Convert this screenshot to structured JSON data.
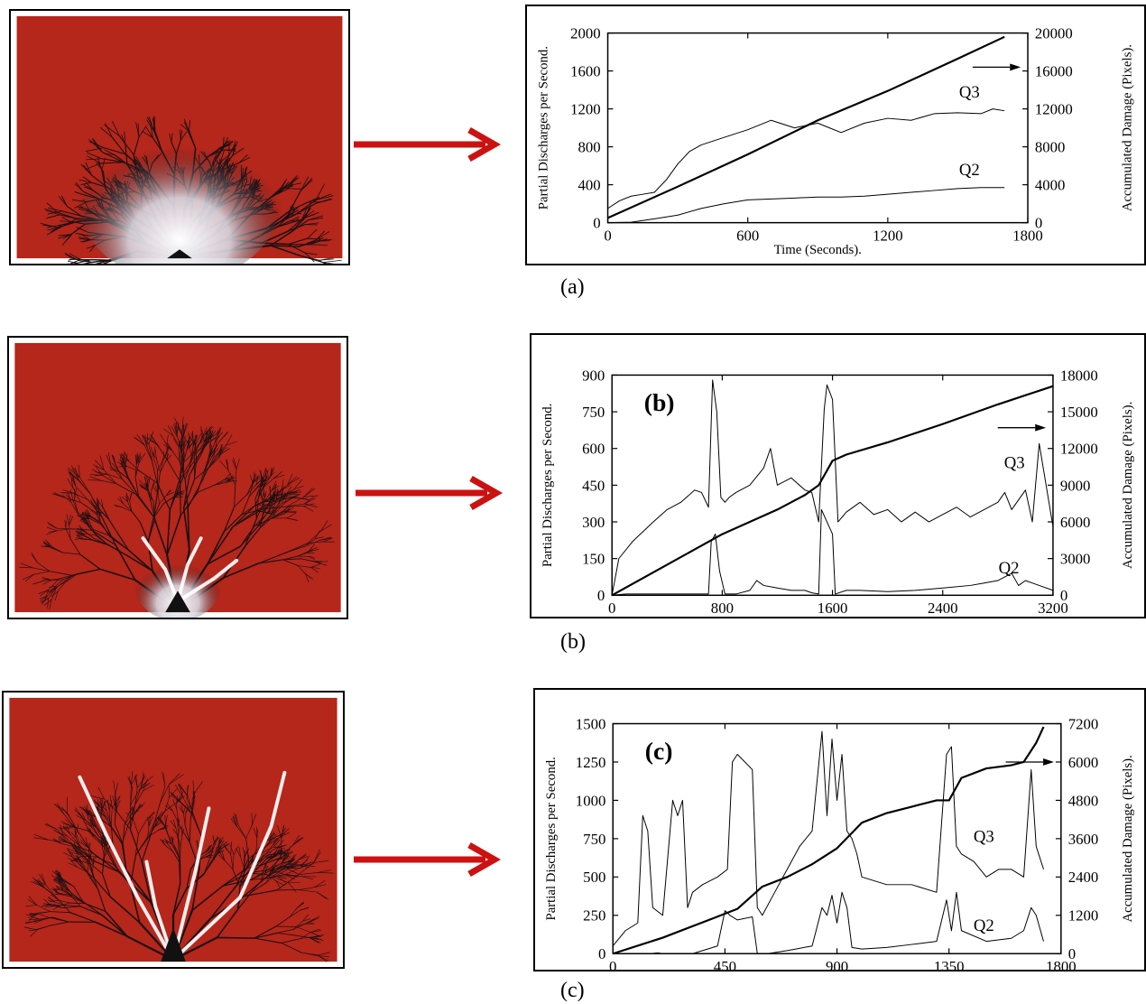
{
  "colors": {
    "photo_bg": "#b5261b",
    "tree": "#1a1014",
    "arrow": "#cc1111",
    "glow": "#ffffff"
  },
  "figure": {
    "captions": [
      "(a)",
      "(b)",
      "(c)"
    ]
  },
  "chart_data": [
    {
      "type": "line",
      "panel_label": "",
      "xlabel": "Time (Seconds).",
      "ylabel": "Partial Discharges per Second.",
      "y2label": "Accumulated Damage (Pixels).",
      "xlim": [
        0,
        1800
      ],
      "ylim": [
        0,
        2000
      ],
      "y2lim": [
        0,
        20000
      ],
      "xticks": [
        0,
        600,
        1200,
        1800
      ],
      "yticks": [
        0,
        400,
        800,
        1200,
        1600,
        2000
      ],
      "y2ticks": [
        0,
        4000,
        8000,
        12000,
        16000,
        20000
      ],
      "arrow_label_y2": 16400,
      "series": [
        {
          "name": "Q3",
          "axis": "left",
          "label_at": [
            1550,
            1320
          ],
          "x": [
            0,
            50,
            100,
            150,
            200,
            250,
            300,
            350,
            400,
            500,
            600,
            700,
            800,
            900,
            950,
            1000,
            1100,
            1200,
            1300,
            1400,
            1500,
            1600,
            1650,
            1700
          ],
          "y": [
            150,
            230,
            280,
            300,
            320,
            450,
            620,
            750,
            820,
            900,
            980,
            1080,
            1000,
            1050,
            1000,
            950,
            1050,
            1100,
            1080,
            1150,
            1160,
            1150,
            1200,
            1180
          ]
        },
        {
          "name": "Q2",
          "axis": "left",
          "label_at": [
            1550,
            500
          ],
          "x": [
            0,
            100,
            200,
            300,
            400,
            500,
            600,
            700,
            800,
            900,
            1000,
            1100,
            1200,
            1300,
            1400,
            1500,
            1600,
            1700
          ],
          "y": [
            0,
            5,
            40,
            80,
            150,
            200,
            240,
            250,
            260,
            270,
            270,
            280,
            300,
            320,
            340,
            360,
            370,
            370
          ]
        },
        {
          "name": "Accumulated damage",
          "axis": "right",
          "x": [
            0,
            300,
            600,
            900,
            1200,
            1500,
            1700
          ],
          "y": [
            500,
            3800,
            7200,
            10800,
            13900,
            17300,
            19600
          ]
        }
      ]
    },
    {
      "type": "line",
      "panel_label": "(b)",
      "xlabel": "Time (Seconds).",
      "ylabel": "Partial Discharges per Second.",
      "y2label": "Accumulated Damage (Pixels).",
      "xlim": [
        0,
        3200
      ],
      "ylim": [
        0,
        900
      ],
      "y2lim": [
        0,
        18000
      ],
      "xticks": [
        0,
        800,
        1600,
        2400,
        3200
      ],
      "yticks": [
        0,
        150,
        300,
        450,
        600,
        750,
        900
      ],
      "y2ticks": [
        0,
        3000,
        6000,
        9000,
        12000,
        15000,
        18000
      ],
      "arrow_label_y2": 13700,
      "series": [
        {
          "name": "Q3",
          "axis": "left",
          "label_at": [
            2920,
            520
          ],
          "x": [
            0,
            50,
            150,
            300,
            400,
            500,
            600,
            650,
            700,
            730,
            760,
            790,
            820,
            850,
            900,
            1000,
            1100,
            1150,
            1200,
            1300,
            1400,
            1450,
            1500,
            1540,
            1560,
            1600,
            1640,
            1700,
            1800,
            1900,
            2000,
            2100,
            2200,
            2300,
            2400,
            2500,
            2600,
            2700,
            2800,
            2850,
            2900,
            3000,
            3050,
            3100,
            3200
          ],
          "y": [
            0,
            150,
            220,
            300,
            350,
            380,
            430,
            420,
            360,
            880,
            750,
            400,
            380,
            400,
            420,
            450,
            520,
            600,
            450,
            480,
            430,
            420,
            300,
            760,
            860,
            800,
            300,
            340,
            380,
            330,
            350,
            300,
            340,
            300,
            330,
            360,
            320,
            350,
            380,
            420,
            350,
            430,
            300,
            620,
            280
          ]
        },
        {
          "name": "Q2",
          "axis": "left",
          "label_at": [
            2880,
            90
          ],
          "x": [
            0,
            100,
            200,
            300,
            400,
            500,
            600,
            700,
            720,
            750,
            780,
            820,
            900,
            1000,
            1050,
            1100,
            1200,
            1300,
            1400,
            1450,
            1500,
            1520,
            1560,
            1600,
            1620,
            1700,
            1800,
            2000,
            2200,
            2400,
            2600,
            2700,
            2800,
            2900,
            2950,
            3000,
            3100,
            3200
          ],
          "y": [
            0,
            5,
            5,
            5,
            5,
            5,
            5,
            5,
            220,
            250,
            100,
            5,
            5,
            20,
            60,
            40,
            30,
            20,
            20,
            10,
            5,
            350,
            300,
            250,
            5,
            20,
            20,
            15,
            20,
            30,
            40,
            50,
            60,
            90,
            40,
            60,
            40,
            20
          ]
        },
        {
          "name": "Accumulated damage",
          "axis": "right",
          "x": [
            0,
            400,
            800,
            1200,
            1400,
            1500,
            1550,
            1600,
            1700,
            2000,
            2400,
            2800,
            3200
          ],
          "y": [
            0,
            2500,
            5000,
            7000,
            8200,
            9000,
            10000,
            11000,
            11500,
            12500,
            14000,
            15600,
            17100
          ]
        }
      ]
    },
    {
      "type": "line",
      "panel_label": "(c)",
      "xlabel": "Time (Seconds).",
      "ylabel": "Partial Discharges per Second.",
      "y2label": "Accumulated Damage (Pixels).",
      "xlim": [
        0,
        1800
      ],
      "ylim": [
        0,
        1500
      ],
      "y2lim": [
        0,
        7200
      ],
      "xticks": [
        0,
        450,
        900,
        1350,
        1800
      ],
      "yticks": [
        0,
        250,
        500,
        750,
        1000,
        1250,
        1500
      ],
      "y2ticks": [
        0,
        1200,
        2400,
        3600,
        4800,
        6000,
        7200
      ],
      "arrow_label_y2": 6000,
      "series": [
        {
          "name": "Q3",
          "axis": "left",
          "label_at": [
            1490,
            730
          ],
          "x": [
            0,
            50,
            100,
            120,
            140,
            160,
            200,
            240,
            260,
            280,
            300,
            320,
            360,
            420,
            460,
            480,
            500,
            560,
            580,
            600,
            650,
            700,
            750,
            800,
            840,
            860,
            880,
            900,
            920,
            940,
            960,
            980,
            1000,
            1100,
            1200,
            1300,
            1340,
            1360,
            1380,
            1400,
            1450,
            1500,
            1550,
            1600,
            1650,
            1680,
            1700,
            1730
          ],
          "y": [
            50,
            150,
            200,
            900,
            800,
            300,
            250,
            1000,
            900,
            1000,
            300,
            400,
            450,
            500,
            550,
            1250,
            1300,
            1200,
            300,
            250,
            400,
            550,
            700,
            800,
            1450,
            900,
            1400,
            1000,
            1300,
            800,
            750,
            650,
            500,
            450,
            450,
            400,
            1300,
            1350,
            700,
            650,
            600,
            500,
            550,
            550,
            500,
            1200,
            700,
            550
          ]
        },
        {
          "name": "Q2",
          "axis": "left",
          "label_at": [
            1490,
            150
          ],
          "x": [
            0,
            50,
            100,
            150,
            180,
            200,
            250,
            300,
            320,
            420,
            450,
            470,
            500,
            560,
            580,
            620,
            700,
            800,
            840,
            860,
            880,
            900,
            920,
            940,
            960,
            1000,
            1100,
            1200,
            1300,
            1340,
            1360,
            1380,
            1400,
            1500,
            1600,
            1650,
            1680,
            1700,
            1730
          ],
          "y": [
            0,
            0,
            0,
            0,
            5,
            0,
            0,
            0,
            0,
            50,
            280,
            250,
            220,
            240,
            0,
            0,
            20,
            50,
            300,
            250,
            380,
            200,
            400,
            300,
            40,
            30,
            40,
            60,
            80,
            350,
            150,
            400,
            150,
            80,
            100,
            150,
            300,
            250,
            80
          ]
        },
        {
          "name": "Accumulated damage",
          "axis": "right",
          "x": [
            0,
            200,
            400,
            500,
            600,
            700,
            800,
            900,
            1000,
            1100,
            1200,
            1300,
            1350,
            1400,
            1500,
            1600,
            1650,
            1700,
            1730
          ],
          "y": [
            0,
            500,
            1100,
            1400,
            2100,
            2400,
            2800,
            3300,
            4100,
            4400,
            4600,
            4800,
            4800,
            5500,
            5800,
            5900,
            6000,
            6600,
            7100
          ]
        }
      ]
    }
  ]
}
